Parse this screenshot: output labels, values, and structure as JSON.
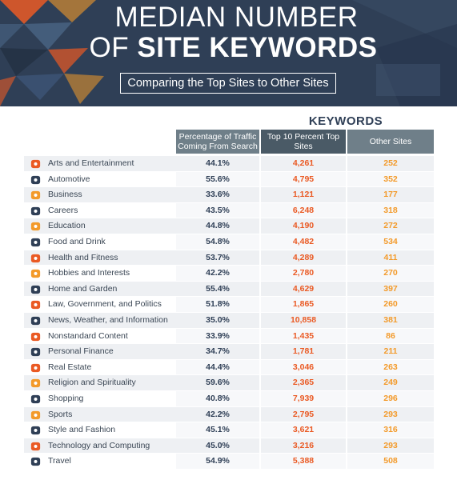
{
  "header": {
    "title_line1": "MEDIAN NUMBER",
    "title_line2_prefix": "OF",
    "title_line2_bold": "SITE KEYWORDS",
    "subtitle": "Comparing the Top Sites to Other Sites"
  },
  "table": {
    "group_label": "KEYWORDS",
    "col_pct": "Percentage of Traffic Coming From Search",
    "col_top10": "Top 10 Percent Top Sites",
    "col_other": "Other Sites",
    "rows": [
      {
        "name": "Arts and Entertainment",
        "pct": "44.1%",
        "top10": "4,261",
        "other": "252",
        "icon": "theater-masks-icon",
        "color": "#ea5a24"
      },
      {
        "name": "Automotive",
        "pct": "55.6%",
        "top10": "4,795",
        "other": "352",
        "icon": "gear-icon",
        "color": "#2f3f56"
      },
      {
        "name": "Business",
        "pct": "33.6%",
        "top10": "1,121",
        "other": "177",
        "icon": "chart-line-icon",
        "color": "#f39a2a"
      },
      {
        "name": "Careers",
        "pct": "43.5%",
        "top10": "6,248",
        "other": "318",
        "icon": "graduation-cap-icon",
        "color": "#2f3f56"
      },
      {
        "name": "Education",
        "pct": "44.8%",
        "top10": "4,190",
        "other": "272",
        "icon": "document-icon",
        "color": "#f39a2a"
      },
      {
        "name": "Food and Drink",
        "pct": "54.8%",
        "top10": "4,482",
        "other": "534",
        "icon": "cloche-icon",
        "color": "#2f3f56"
      },
      {
        "name": "Health and Fitness",
        "pct": "53.7%",
        "top10": "4,289",
        "other": "411",
        "icon": "heart-pulse-icon",
        "color": "#ea5a24"
      },
      {
        "name": "Hobbies and Interests",
        "pct": "42.2%",
        "top10": "2,780",
        "other": "270",
        "icon": "pencil-icon",
        "color": "#f39a2a"
      },
      {
        "name": "Home and Garden",
        "pct": "55.4%",
        "top10": "4,629",
        "other": "397",
        "icon": "house-icon",
        "color": "#2f3f56"
      },
      {
        "name": "Law, Government, and Politics",
        "pct": "51.8%",
        "top10": "1,865",
        "other": "260",
        "icon": "courthouse-icon",
        "color": "#ea5a24"
      },
      {
        "name": "News, Weather, and Information",
        "pct": "35.0%",
        "top10": "10,858",
        "other": "381",
        "icon": "newspaper-icon",
        "color": "#2f3f56"
      },
      {
        "name": "Nonstandard Content",
        "pct": "33.9%",
        "top10": "1,435",
        "other": "86",
        "icon": "signpost-icon",
        "color": "#ea5a24"
      },
      {
        "name": "Personal Finance",
        "pct": "34.7%",
        "top10": "1,781",
        "other": "211",
        "icon": "money-bag-icon",
        "color": "#2f3f56"
      },
      {
        "name": "Real Estate",
        "pct": "44.4%",
        "top10": "3,046",
        "other": "263",
        "icon": "houses-icon",
        "color": "#ea5a24"
      },
      {
        "name": "Religion and Spirituality",
        "pct": "59.6%",
        "top10": "2,365",
        "other": "249",
        "icon": "praying-hands-icon",
        "color": "#f39a2a"
      },
      {
        "name": "Shopping",
        "pct": "40.8%",
        "top10": "7,939",
        "other": "296",
        "icon": "shopping-bag-icon",
        "color": "#2f3f56"
      },
      {
        "name": "Sports",
        "pct": "42.2%",
        "top10": "2,795",
        "other": "293",
        "icon": "trophy-icon",
        "color": "#f39a2a"
      },
      {
        "name": "Style and Fashion",
        "pct": "45.1%",
        "top10": "3,621",
        "other": "316",
        "icon": "hanger-icon",
        "color": "#2f3f56"
      },
      {
        "name": "Technology and Computing",
        "pct": "45.0%",
        "top10": "3,216",
        "other": "293",
        "icon": "satellite-icon",
        "color": "#ea5a24"
      },
      {
        "name": "Travel",
        "pct": "54.9%",
        "top10": "5,388",
        "other": "508",
        "icon": "suitcase-icon",
        "color": "#2f3f56"
      }
    ]
  }
}
